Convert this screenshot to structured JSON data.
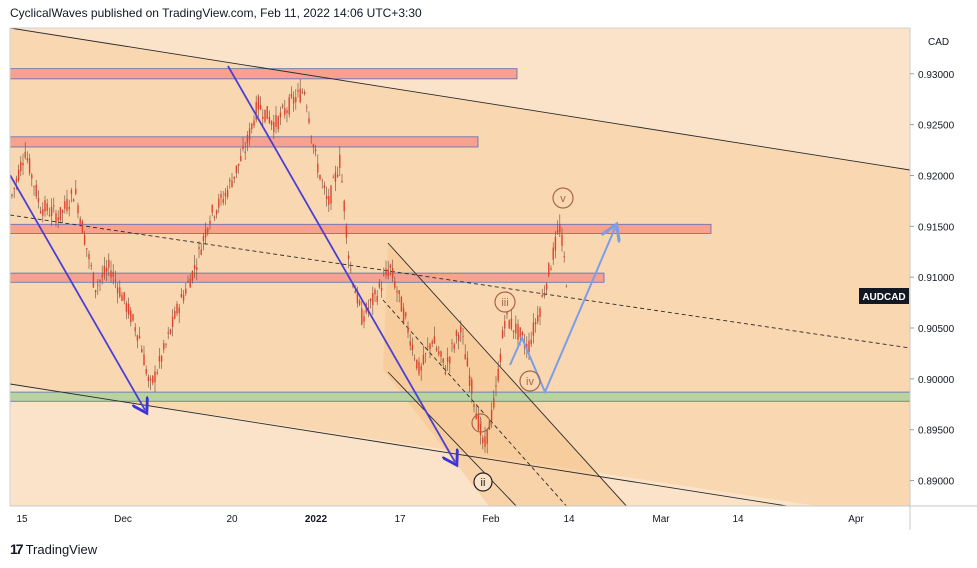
{
  "header": {
    "publisher": "CyclicalWaves published on TradingView.com, Feb 11, 2022 14:06 UTC+3:30"
  },
  "footer": {
    "logo_text": "TradingView",
    "logo_mark": "17"
  },
  "chart_data": {
    "type": "candlestick",
    "currency": "CAD",
    "symbol": "AUDCAD",
    "last_price_badge": "AUDCAD",
    "ylim": [
      0.8875,
      0.9345
    ],
    "x_ticks": [
      "15",
      "Dec",
      "20",
      "2022",
      "17",
      "Feb",
      "14",
      "Mar",
      "14",
      "Apr"
    ],
    "y_ticks": [
      "0.93000",
      "0.92500",
      "0.92000",
      "0.91500",
      "0.91000",
      "0.90500",
      "0.90000",
      "0.89500",
      "0.89000"
    ],
    "wave_labels": [
      "ii",
      "i",
      "iii",
      "iv",
      "v"
    ],
    "zones": [
      {
        "type": "resistance",
        "from": 0.9295,
        "to": 0.9305,
        "color": "#f7a28f"
      },
      {
        "type": "resistance",
        "from": 0.9228,
        "to": 0.9238,
        "color": "#f7a28f"
      },
      {
        "type": "resistance",
        "from": 0.9143,
        "to": 0.9152,
        "color": "#f7a28f"
      },
      {
        "type": "resistance",
        "from": 0.9095,
        "to": 0.9104,
        "color": "#f7a28f"
      },
      {
        "type": "support",
        "from": 0.8978,
        "to": 0.8987,
        "color": "#b9d3a0"
      }
    ],
    "colors": {
      "background": "#fbe3c9",
      "channel_fill": "#f8cf9f",
      "candle": "#e3402a",
      "wave_line": "#5a4bd6",
      "projection": "#7b9ee8"
    }
  }
}
